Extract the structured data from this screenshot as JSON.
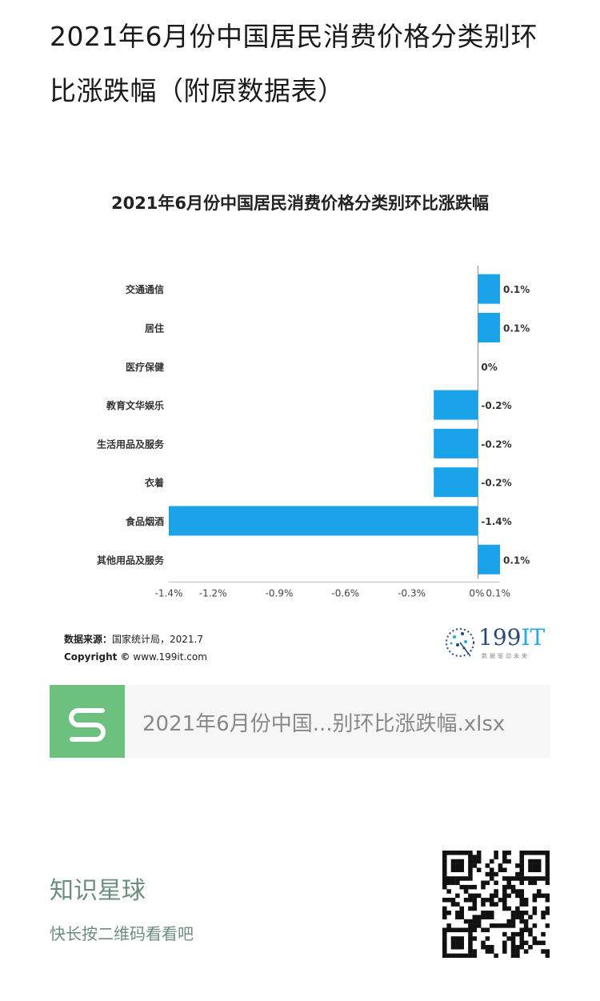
{
  "post": {
    "title": "2021年6月份中国居民消费价格分类别环比涨跌幅（附原数据表）"
  },
  "chart_data": {
    "type": "bar",
    "orientation": "horizontal",
    "title": "2021年6月份中国居民消费价格分类别环比涨跌幅",
    "categories": [
      "交通通信",
      "居住",
      "医疗保健",
      "教育文华娱乐",
      "生活用品及服务",
      "衣着",
      "食品烟酒",
      "其他用品及服务"
    ],
    "values": [
      0.1,
      0.1,
      0,
      -0.2,
      -0.2,
      -0.2,
      -1.4,
      0.1
    ],
    "data_labels": [
      "0.1%",
      "0.1%",
      "0%",
      "-0.2%",
      "-0.2%",
      "-0.2%",
      "-1.4%",
      "0.1%"
    ],
    "x_ticks": [
      -1.4,
      -1.2,
      -0.9,
      -0.6,
      -0.3,
      0,
      0.1
    ],
    "x_tick_labels": [
      "-1.4%",
      "-1.2%",
      "-0.9%",
      "-0.6%",
      "-0.3%",
      "0%",
      "0.1%"
    ],
    "xlim": [
      -1.4,
      0.1
    ],
    "bar_color": "#1aa3e8",
    "grid": false,
    "legend": "none"
  },
  "source": {
    "label": "数据来源：",
    "text": "国家统计局，2021.7",
    "copyright_label": "Copyright ©",
    "copyright_text": "www.199it.com"
  },
  "logo": {
    "num": "199",
    "it": "IT",
    "sub": "数据驱动未来"
  },
  "file": {
    "name": "2021年6月份中国...别环比涨跌幅.xlsx",
    "icon": "spreadsheet-s-icon",
    "icon_color": "#6cc17e"
  },
  "planet": {
    "name": "知识星球",
    "hint": "快长按二维码看看吧"
  },
  "colors": {
    "accent_green": "#6b8f7c",
    "bar_blue": "#1aa3e8"
  }
}
